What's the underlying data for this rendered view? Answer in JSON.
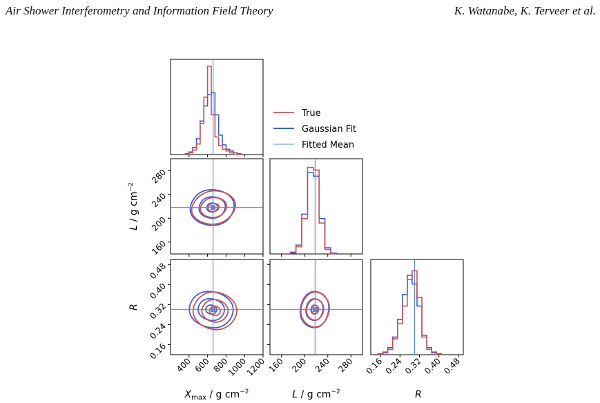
{
  "header": {
    "left_title": "Air Shower Interferometry and Information Field Theory",
    "right_authors": "K. Watanabe, K. Terveer et al."
  },
  "colors": {
    "true": "#d05050",
    "gauss": "#3a5fd6",
    "mean": "#5a86e0"
  },
  "legend": {
    "items": [
      "True",
      "Gaussian Fit",
      "Fitted Mean"
    ]
  },
  "axis_labels": {
    "x_xmax": "X",
    "x_xmax_sub": "max",
    "x_xmax_unit": " / g cm",
    "x_L": "L",
    "x_L_unit": " / g cm",
    "x_R": "R",
    "y_L": "L",
    "y_L_unit": " / g cm",
    "y_R": "R",
    "exponent": "−2"
  },
  "chart_data": {
    "type": "corner",
    "parameters": [
      "Xmax",
      "L",
      "R"
    ],
    "ranges": {
      "Xmax": [
        200,
        1200
      ],
      "L": [
        140,
        300
      ],
      "R": [
        0.12,
        0.5
      ]
    },
    "ticks": {
      "Xmax": [
        "400",
        "600",
        "800",
        "1000",
        "1200"
      ],
      "L": [
        "160",
        "200",
        "240",
        "280"
      ],
      "L_row": [
        "160",
        "200",
        "240",
        "280"
      ],
      "R": [
        "0.16",
        "0.24",
        "0.32",
        "0.40",
        "0.48"
      ],
      "R_row": [
        "0.16",
        "0.24",
        "0.32",
        "0.40",
        "0.48"
      ]
    },
    "fitted_mean": {
      "Xmax": 660,
      "L": 218,
      "R": 0.3
    },
    "hist_Xmax": {
      "x": [
        380,
        420,
        460,
        500,
        540,
        580,
        620,
        660,
        700,
        740,
        780,
        820,
        860,
        900,
        940
      ],
      "true": [
        0.0,
        0.02,
        0.05,
        0.12,
        0.35,
        0.65,
        1.0,
        0.45,
        0.2,
        0.1,
        0.06,
        0.04,
        0.02,
        0.0,
        0.0
      ],
      "gauss": [
        0.01,
        0.03,
        0.08,
        0.18,
        0.38,
        0.55,
        0.68,
        0.7,
        0.45,
        0.22,
        0.11,
        0.06,
        0.04,
        0.02,
        0.01
      ]
    },
    "hist_L": {
      "x": [
        170,
        180,
        190,
        200,
        210,
        220,
        230,
        240,
        250
      ],
      "true": [
        0.0,
        0.01,
        0.08,
        0.4,
        0.98,
        0.95,
        0.35,
        0.05,
        0.0
      ],
      "gauss": [
        0.0,
        0.02,
        0.1,
        0.45,
        0.92,
        0.88,
        0.4,
        0.07,
        0.01
      ]
    },
    "hist_R": {
      "x": [
        0.16,
        0.18,
        0.2,
        0.22,
        0.24,
        0.26,
        0.28,
        0.3,
        0.32,
        0.34,
        0.36,
        0.38,
        0.4
      ],
      "true": [
        0.0,
        0.02,
        0.06,
        0.18,
        0.35,
        0.55,
        0.85,
        0.95,
        0.65,
        0.2,
        0.06,
        0.02,
        0.0
      ],
      "gauss": [
        0.01,
        0.03,
        0.08,
        0.2,
        0.4,
        0.68,
        0.9,
        0.8,
        0.55,
        0.22,
        0.08,
        0.03,
        0.01
      ]
    },
    "contour_levels": [
      0.5,
      1.2,
      2.0
    ],
    "contours": {
      "L_vs_Xmax": {
        "true": {
          "cx": 665,
          "cy": 218,
          "rx": 230,
          "ry": 28,
          "tilt": 0.05
        },
        "gauss": {
          "cx": 650,
          "cy": 218,
          "rx": 240,
          "ry": 30,
          "tilt": -0.02
        }
      },
      "R_vs_Xmax": {
        "true": {
          "cx": 680,
          "cy": 0.295,
          "rx": 230,
          "ry": 0.075,
          "tilt": -0.08
        },
        "gauss": {
          "cx": 640,
          "cy": 0.3,
          "rx": 240,
          "ry": 0.072,
          "tilt": -0.12
        }
      },
      "R_vs_L": {
        "true": {
          "cx": 218,
          "cy": 0.3,
          "rx": 24,
          "ry": 0.07,
          "tilt": 0.0
        },
        "gauss": {
          "cx": 217,
          "cy": 0.3,
          "rx": 25,
          "ry": 0.072,
          "tilt": 0.0
        }
      }
    }
  }
}
